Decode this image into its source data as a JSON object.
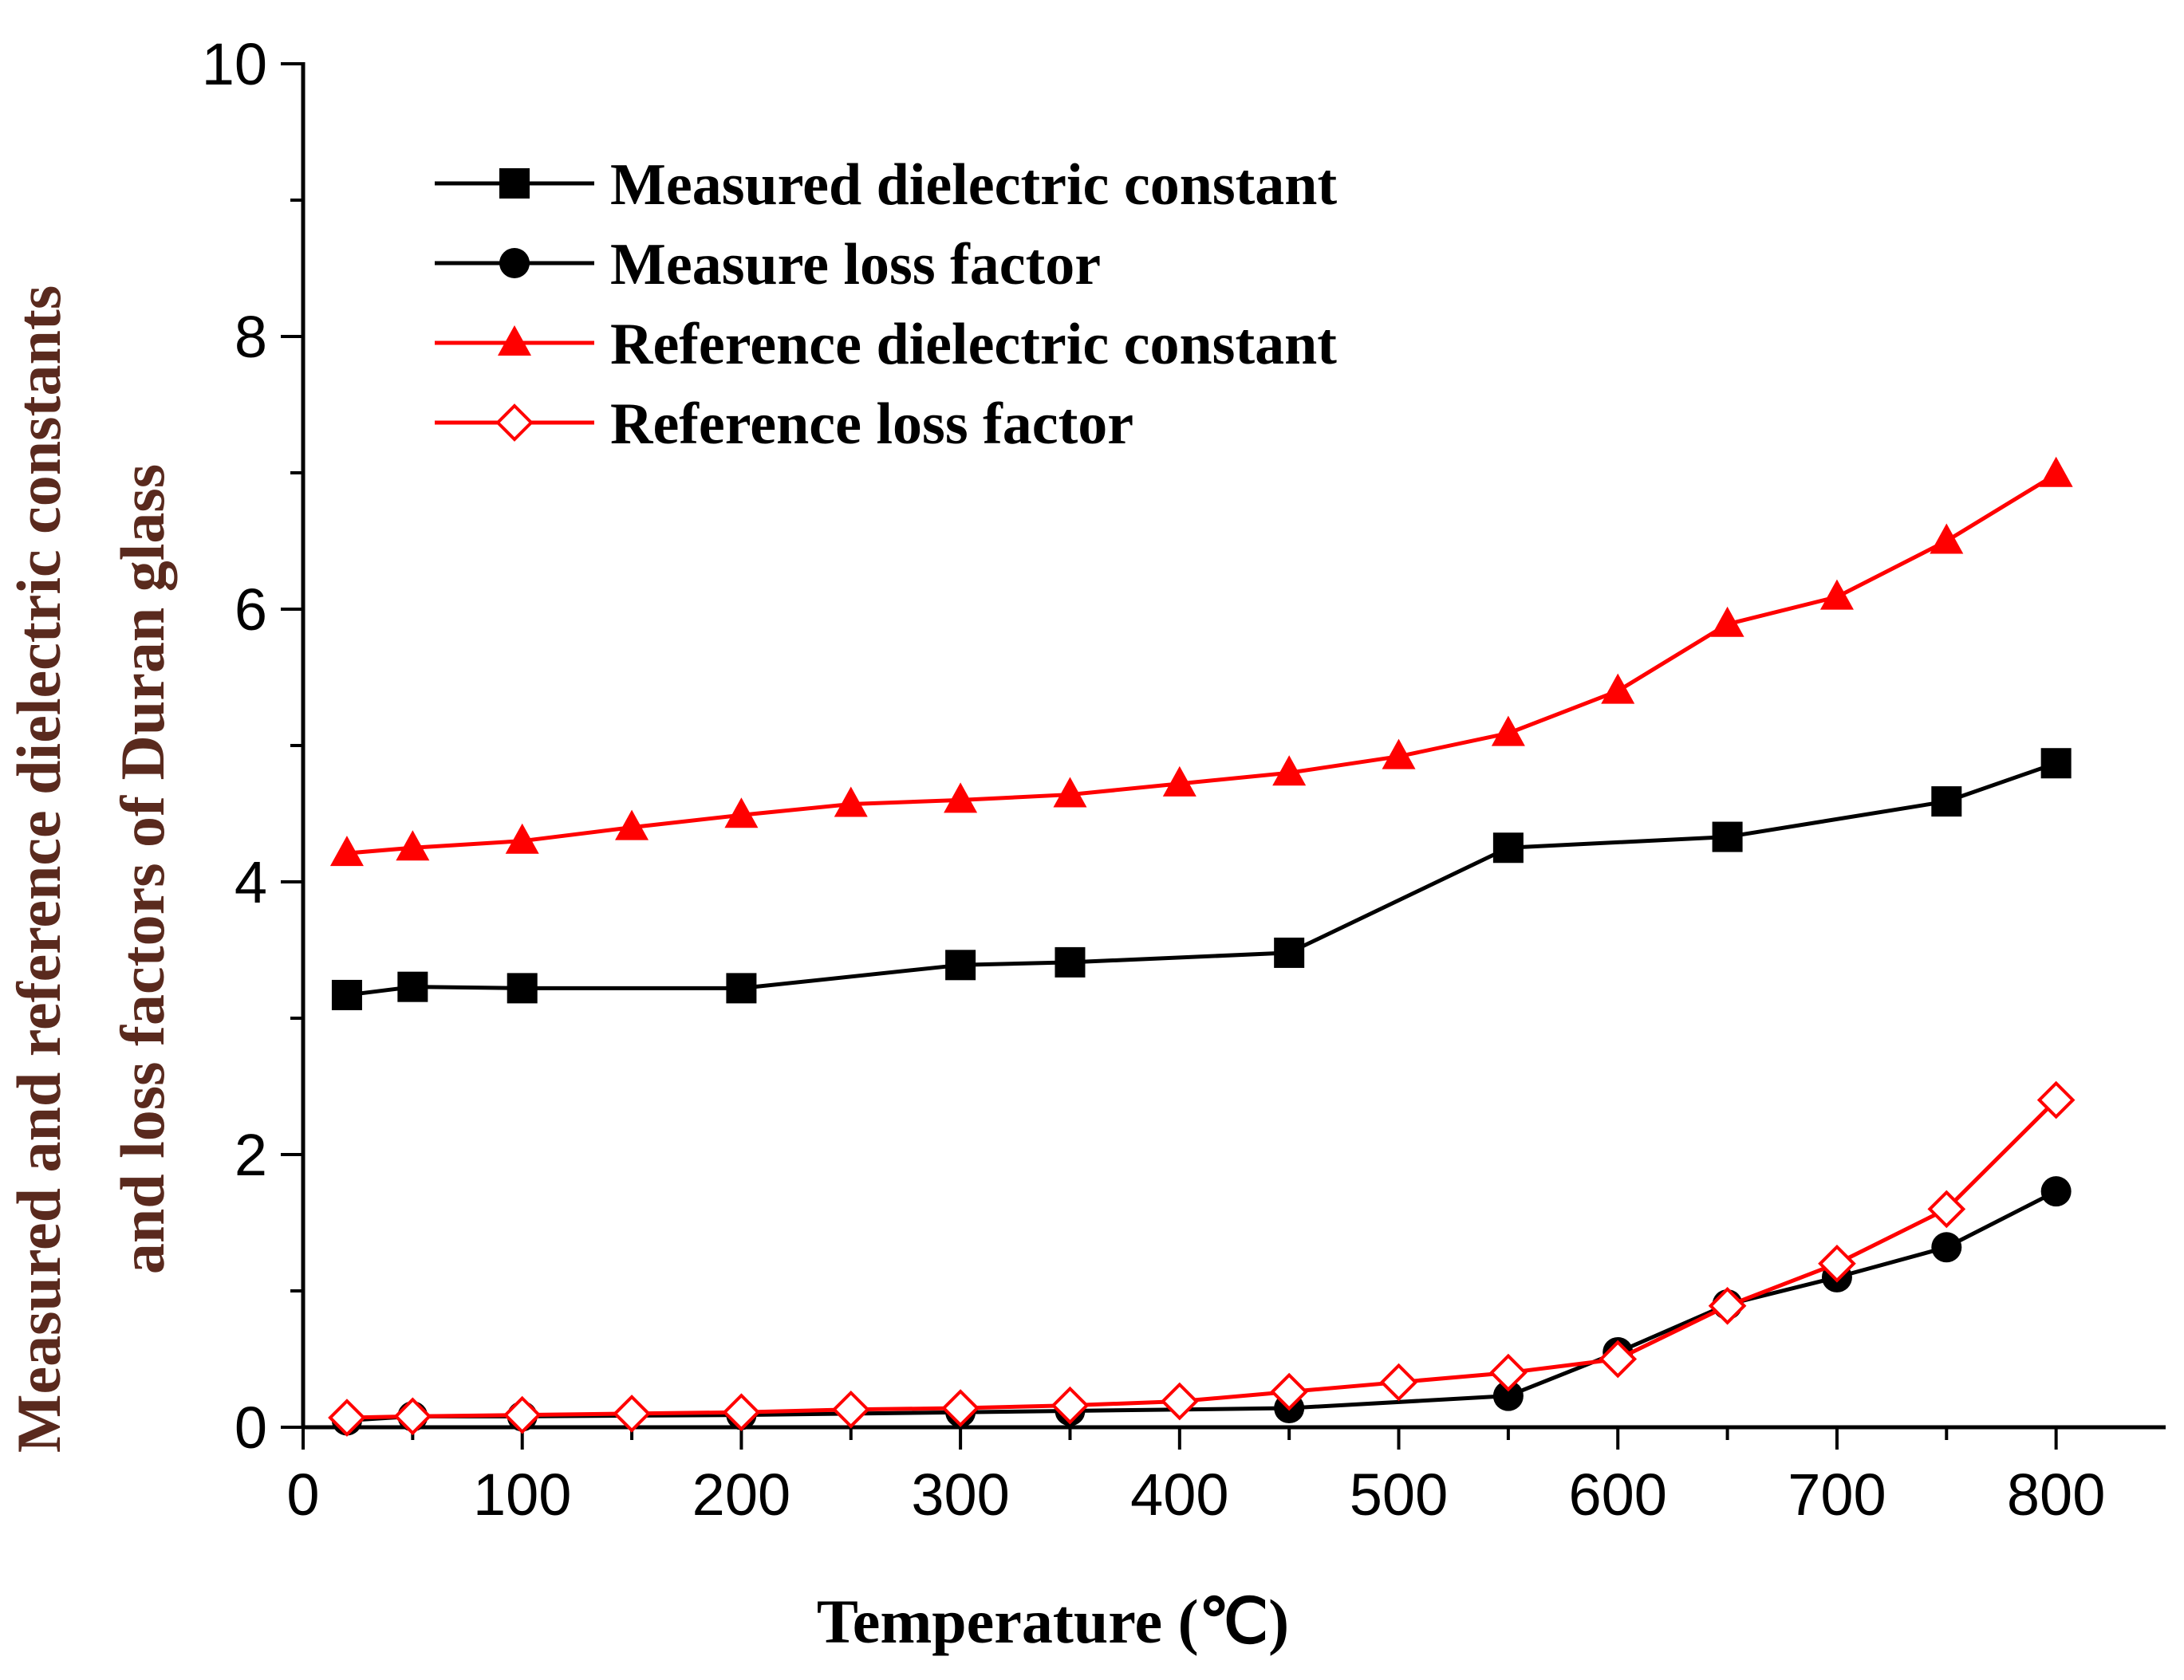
{
  "chart_data": {
    "type": "line",
    "title": "",
    "xlabel": "Temperature (℃)",
    "ylabel_line1": "Measured and reference dielectric constants",
    "ylabel_line2": "and loss factors of Duran glass",
    "xlim": [
      0,
      850
    ],
    "ylim": [
      0,
      10
    ],
    "xticks": [
      "0",
      "100",
      "200",
      "300",
      "400",
      "500",
      "600",
      "700",
      "800"
    ],
    "yticks": [
      "0",
      "2",
      "4",
      "6",
      "8",
      "10"
    ],
    "x_tick_values": [
      0,
      100,
      200,
      300,
      400,
      500,
      600,
      700,
      800
    ],
    "y_tick_values": [
      0,
      2,
      4,
      6,
      8,
      10
    ],
    "legend_position": "top-left",
    "colors": {
      "axis": "#000000",
      "black_series": "#000000",
      "red_series": "#ff0000",
      "ylabel": "#5a2a1e"
    },
    "series": [
      {
        "name": "Measured dielectric constant",
        "color": "#000000",
        "marker": "square-filled",
        "points": [
          [
            20,
            3.17
          ],
          [
            50,
            3.23
          ],
          [
            100,
            3.22
          ],
          [
            200,
            3.22
          ],
          [
            300,
            3.39
          ],
          [
            350,
            3.41
          ],
          [
            450,
            3.48
          ],
          [
            550,
            4.25
          ],
          [
            650,
            4.33
          ],
          [
            750,
            4.59
          ],
          [
            800,
            4.87
          ]
        ]
      },
      {
        "name": "Measure loss factor",
        "color": "#000000",
        "marker": "circle-filled",
        "points": [
          [
            20,
            0.05
          ],
          [
            50,
            0.08
          ],
          [
            100,
            0.08
          ],
          [
            200,
            0.09
          ],
          [
            300,
            0.11
          ],
          [
            350,
            0.12
          ],
          [
            450,
            0.14
          ],
          [
            550,
            0.23
          ],
          [
            600,
            0.55
          ],
          [
            650,
            0.9
          ],
          [
            700,
            1.1
          ],
          [
            750,
            1.32
          ],
          [
            800,
            1.73
          ]
        ]
      },
      {
        "name": "Reference dielectric constant",
        "color": "#ff0000",
        "marker": "triangle-filled",
        "points": [
          [
            20,
            4.21
          ],
          [
            50,
            4.25
          ],
          [
            100,
            4.3
          ],
          [
            150,
            4.4
          ],
          [
            200,
            4.49
          ],
          [
            250,
            4.57
          ],
          [
            300,
            4.6
          ],
          [
            350,
            4.64
          ],
          [
            400,
            4.72
          ],
          [
            450,
            4.8
          ],
          [
            500,
            4.92
          ],
          [
            550,
            5.09
          ],
          [
            600,
            5.4
          ],
          [
            650,
            5.89
          ],
          [
            700,
            6.09
          ],
          [
            750,
            6.5
          ],
          [
            800,
            6.99
          ]
        ]
      },
      {
        "name": "Reference loss factor",
        "color": "#ff0000",
        "marker": "diamond-open",
        "points": [
          [
            20,
            0.07
          ],
          [
            50,
            0.08
          ],
          [
            100,
            0.09
          ],
          [
            150,
            0.1
          ],
          [
            200,
            0.11
          ],
          [
            250,
            0.13
          ],
          [
            300,
            0.14
          ],
          [
            350,
            0.16
          ],
          [
            400,
            0.19
          ],
          [
            450,
            0.26
          ],
          [
            500,
            0.33
          ],
          [
            550,
            0.4
          ],
          [
            600,
            0.5
          ],
          [
            650,
            0.89
          ],
          [
            700,
            1.2
          ],
          [
            750,
            1.6
          ],
          [
            800,
            2.4
          ]
        ]
      }
    ]
  }
}
